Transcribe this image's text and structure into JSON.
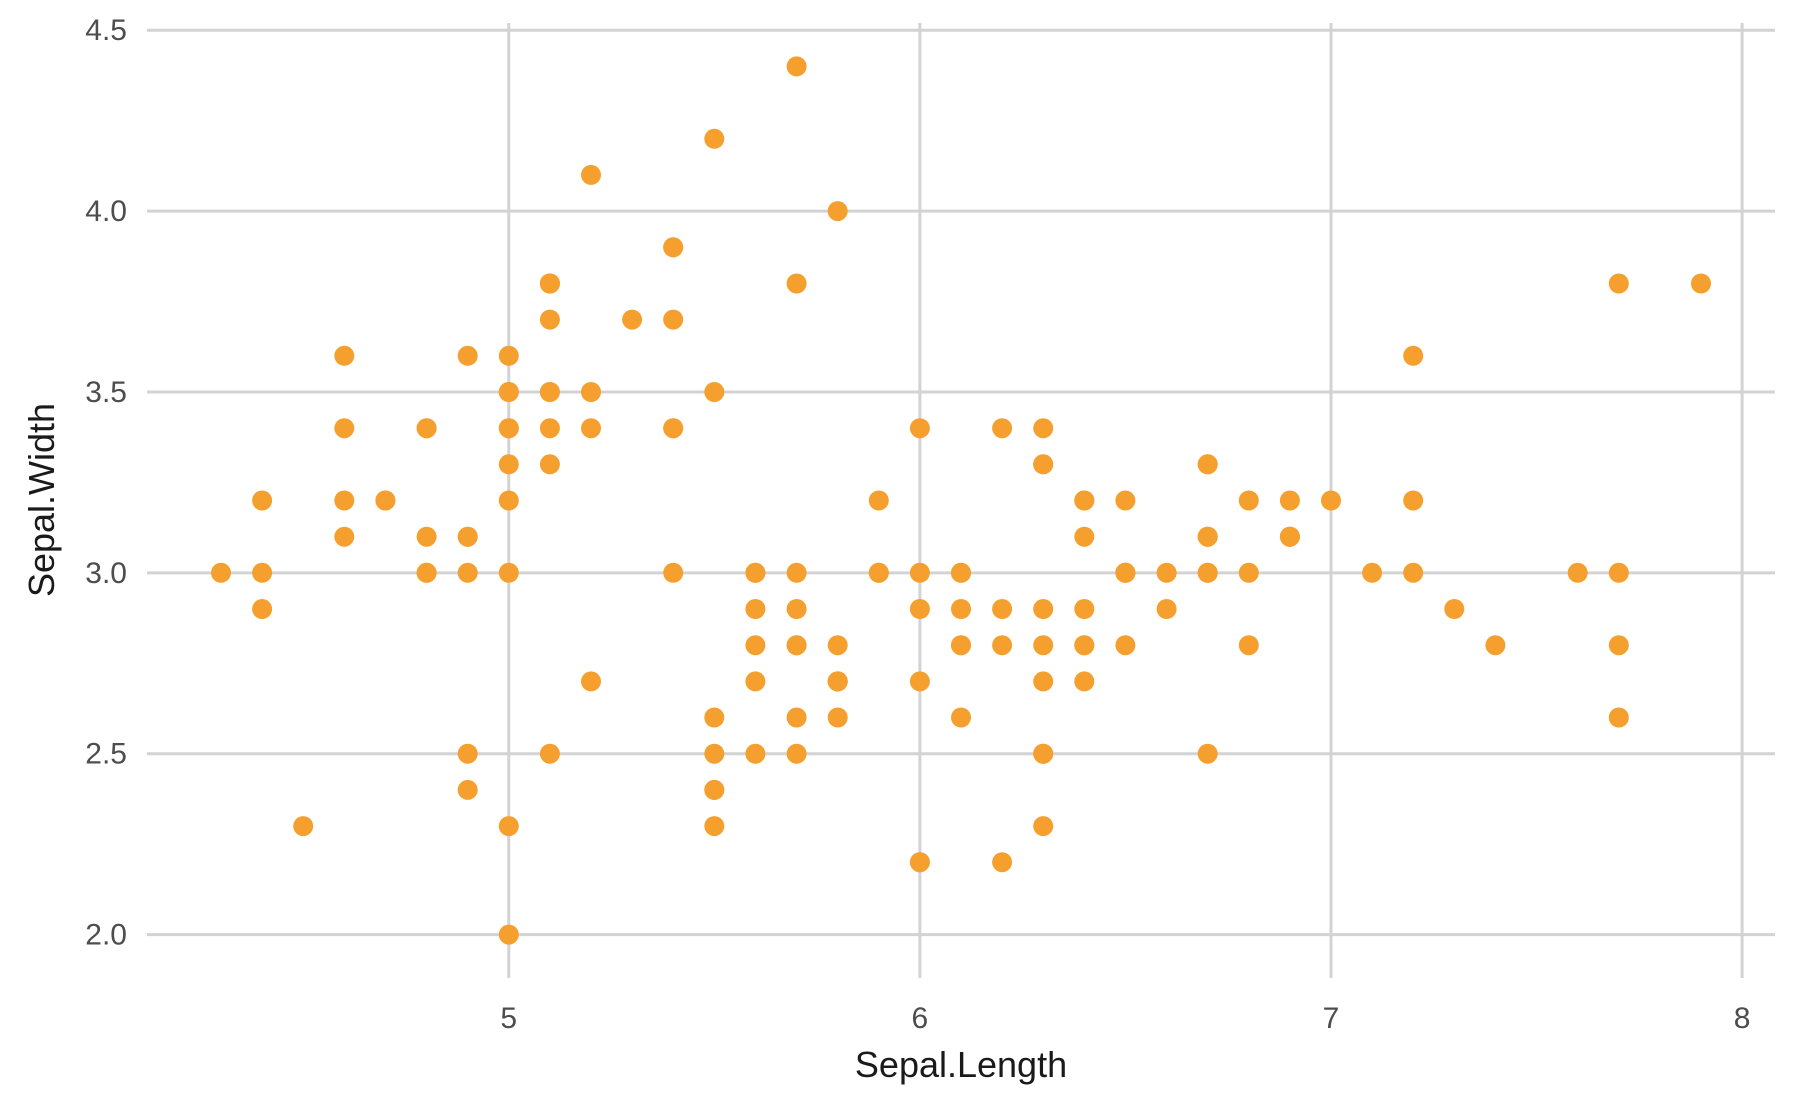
{
  "chart_data": {
    "type": "scatter",
    "title": "",
    "xlabel": "Sepal.Length",
    "ylabel": "Sepal.Width",
    "x_ticks": [
      5,
      6,
      7,
      8
    ],
    "x_tick_labels": [
      "5",
      "6",
      "7",
      "8"
    ],
    "y_ticks": [
      2.0,
      2.5,
      3.0,
      3.5,
      4.0,
      4.5
    ],
    "y_tick_labels": [
      "2.0",
      "2.5",
      "3.0",
      "3.5",
      "4.0",
      "4.5"
    ],
    "xlim": [
      4.12,
      8.08
    ],
    "ylim": [
      1.88,
      4.52
    ],
    "grid": true,
    "legend_position": "none",
    "point_color": "#F5A02E",
    "grid_color": "#D3D3D3",
    "tick_label_color": "#4D4D4D",
    "axis_title_color": "#1A1A1A",
    "background_color": "#FFFFFF",
    "points": [
      [
        5.1,
        3.5
      ],
      [
        4.9,
        3.0
      ],
      [
        4.7,
        3.2
      ],
      [
        4.6,
        3.1
      ],
      [
        5.0,
        3.6
      ],
      [
        5.4,
        3.9
      ],
      [
        4.6,
        3.4
      ],
      [
        5.0,
        3.4
      ],
      [
        4.4,
        2.9
      ],
      [
        4.9,
        3.1
      ],
      [
        5.4,
        3.7
      ],
      [
        4.8,
        3.4
      ],
      [
        4.8,
        3.0
      ],
      [
        4.3,
        3.0
      ],
      [
        5.8,
        4.0
      ],
      [
        5.7,
        4.4
      ],
      [
        5.4,
        3.9
      ],
      [
        5.1,
        3.5
      ],
      [
        5.7,
        3.8
      ],
      [
        5.1,
        3.8
      ],
      [
        5.4,
        3.4
      ],
      [
        5.1,
        3.7
      ],
      [
        4.6,
        3.6
      ],
      [
        5.1,
        3.3
      ],
      [
        4.8,
        3.4
      ],
      [
        5.0,
        3.0
      ],
      [
        5.0,
        3.4
      ],
      [
        5.2,
        3.5
      ],
      [
        5.2,
        3.4
      ],
      [
        4.7,
        3.2
      ],
      [
        4.8,
        3.1
      ],
      [
        5.4,
        3.4
      ],
      [
        5.2,
        4.1
      ],
      [
        5.5,
        4.2
      ],
      [
        4.9,
        3.1
      ],
      [
        5.0,
        3.2
      ],
      [
        5.5,
        3.5
      ],
      [
        4.9,
        3.6
      ],
      [
        4.4,
        3.0
      ],
      [
        5.1,
        3.4
      ],
      [
        5.0,
        3.5
      ],
      [
        4.5,
        2.3
      ],
      [
        4.4,
        3.2
      ],
      [
        5.0,
        3.5
      ],
      [
        5.1,
        3.8
      ],
      [
        4.8,
        3.0
      ],
      [
        5.1,
        3.8
      ],
      [
        4.6,
        3.2
      ],
      [
        5.3,
        3.7
      ],
      [
        5.0,
        3.3
      ],
      [
        7.0,
        3.2
      ],
      [
        6.4,
        3.2
      ],
      [
        6.9,
        3.1
      ],
      [
        5.5,
        2.3
      ],
      [
        6.5,
        2.8
      ],
      [
        5.7,
        2.8
      ],
      [
        6.3,
        3.3
      ],
      [
        4.9,
        2.4
      ],
      [
        6.6,
        2.9
      ],
      [
        5.2,
        2.7
      ],
      [
        5.0,
        2.0
      ],
      [
        5.9,
        3.0
      ],
      [
        6.0,
        2.2
      ],
      [
        6.1,
        2.9
      ],
      [
        5.6,
        2.9
      ],
      [
        6.7,
        3.1
      ],
      [
        5.6,
        3.0
      ],
      [
        5.8,
        2.7
      ],
      [
        6.2,
        2.2
      ],
      [
        5.6,
        2.5
      ],
      [
        5.9,
        3.2
      ],
      [
        6.1,
        2.8
      ],
      [
        6.3,
        2.5
      ],
      [
        6.1,
        2.8
      ],
      [
        6.4,
        2.9
      ],
      [
        6.6,
        3.0
      ],
      [
        6.8,
        2.8
      ],
      [
        6.7,
        3.0
      ],
      [
        6.0,
        2.9
      ],
      [
        5.7,
        2.6
      ],
      [
        5.5,
        2.4
      ],
      [
        5.5,
        2.4
      ],
      [
        5.8,
        2.7
      ],
      [
        6.0,
        2.7
      ],
      [
        5.4,
        3.0
      ],
      [
        6.0,
        3.4
      ],
      [
        6.7,
        3.1
      ],
      [
        6.3,
        2.3
      ],
      [
        5.6,
        3.0
      ],
      [
        5.5,
        2.5
      ],
      [
        5.5,
        2.6
      ],
      [
        6.1,
        3.0
      ],
      [
        5.8,
        2.6
      ],
      [
        5.0,
        2.3
      ],
      [
        5.6,
        2.7
      ],
      [
        5.7,
        3.0
      ],
      [
        5.7,
        2.9
      ],
      [
        6.2,
        2.9
      ],
      [
        5.1,
        2.5
      ],
      [
        5.7,
        2.8
      ],
      [
        6.3,
        3.3
      ],
      [
        5.8,
        2.7
      ],
      [
        7.1,
        3.0
      ],
      [
        6.3,
        2.9
      ],
      [
        6.5,
        3.0
      ],
      [
        7.6,
        3.0
      ],
      [
        4.9,
        2.5
      ],
      [
        7.3,
        2.9
      ],
      [
        6.7,
        2.5
      ],
      [
        7.2,
        3.6
      ],
      [
        6.5,
        3.2
      ],
      [
        6.4,
        2.7
      ],
      [
        6.8,
        3.0
      ],
      [
        5.7,
        2.5
      ],
      [
        5.8,
        2.8
      ],
      [
        6.4,
        3.2
      ],
      [
        6.5,
        3.0
      ],
      [
        7.7,
        3.8
      ],
      [
        7.7,
        2.6
      ],
      [
        6.0,
        2.2
      ],
      [
        6.9,
        3.2
      ],
      [
        5.6,
        2.8
      ],
      [
        7.7,
        2.8
      ],
      [
        6.3,
        2.7
      ],
      [
        6.7,
        3.3
      ],
      [
        7.2,
        3.2
      ],
      [
        6.2,
        2.8
      ],
      [
        6.1,
        3.0
      ],
      [
        6.4,
        2.8
      ],
      [
        7.2,
        3.0
      ],
      [
        7.4,
        2.8
      ],
      [
        7.9,
        3.8
      ],
      [
        6.4,
        2.8
      ],
      [
        6.3,
        2.8
      ],
      [
        6.1,
        2.6
      ],
      [
        7.7,
        3.0
      ],
      [
        6.3,
        3.4
      ],
      [
        6.4,
        3.1
      ],
      [
        6.0,
        3.0
      ],
      [
        6.9,
        3.1
      ],
      [
        6.7,
        3.1
      ],
      [
        6.9,
        3.1
      ],
      [
        5.8,
        2.7
      ],
      [
        6.8,
        3.2
      ],
      [
        6.7,
        3.3
      ],
      [
        6.7,
        3.0
      ],
      [
        6.3,
        2.5
      ],
      [
        6.5,
        3.0
      ],
      [
        6.2,
        3.4
      ],
      [
        5.9,
        3.0
      ]
    ]
  }
}
